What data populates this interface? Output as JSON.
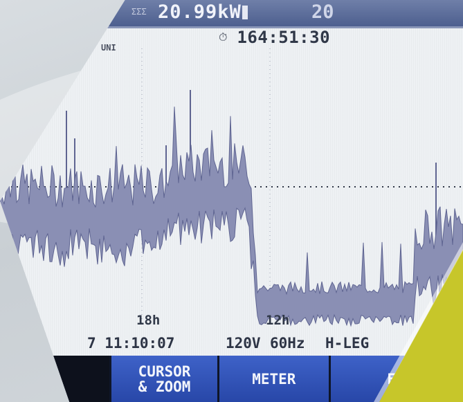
{
  "header": {
    "small_label": "ΣΣΣ",
    "primary_value": "20.99kW",
    "secondary_value": "20"
  },
  "timer": {
    "icon": "stopwatch-icon",
    "value": "164:51:30"
  },
  "plot": {
    "unit_label": "UNI",
    "time_labels": [
      "18h",
      "12h"
    ],
    "colors": {
      "trace": "#8a8fb4",
      "trace_dark": "#5e6491",
      "grid": "#2f3646"
    }
  },
  "status": {
    "datetime": "7 11:10:07",
    "voltage": "120V",
    "frequency": "60Hz",
    "config": "H-LEG"
  },
  "softkeys": [
    {
      "name": "softkey-blank",
      "label_line1": "",
      "label_line2": ""
    },
    {
      "name": "softkey-cursor-zoom",
      "label_line1": "CURSOR",
      "label_line2": "& ZOOM"
    },
    {
      "name": "softkey-meter",
      "label_line1": "METER",
      "label_line2": ""
    },
    {
      "name": "softkey-events",
      "label_line1": "EV",
      "label_line2": ""
    }
  ]
}
